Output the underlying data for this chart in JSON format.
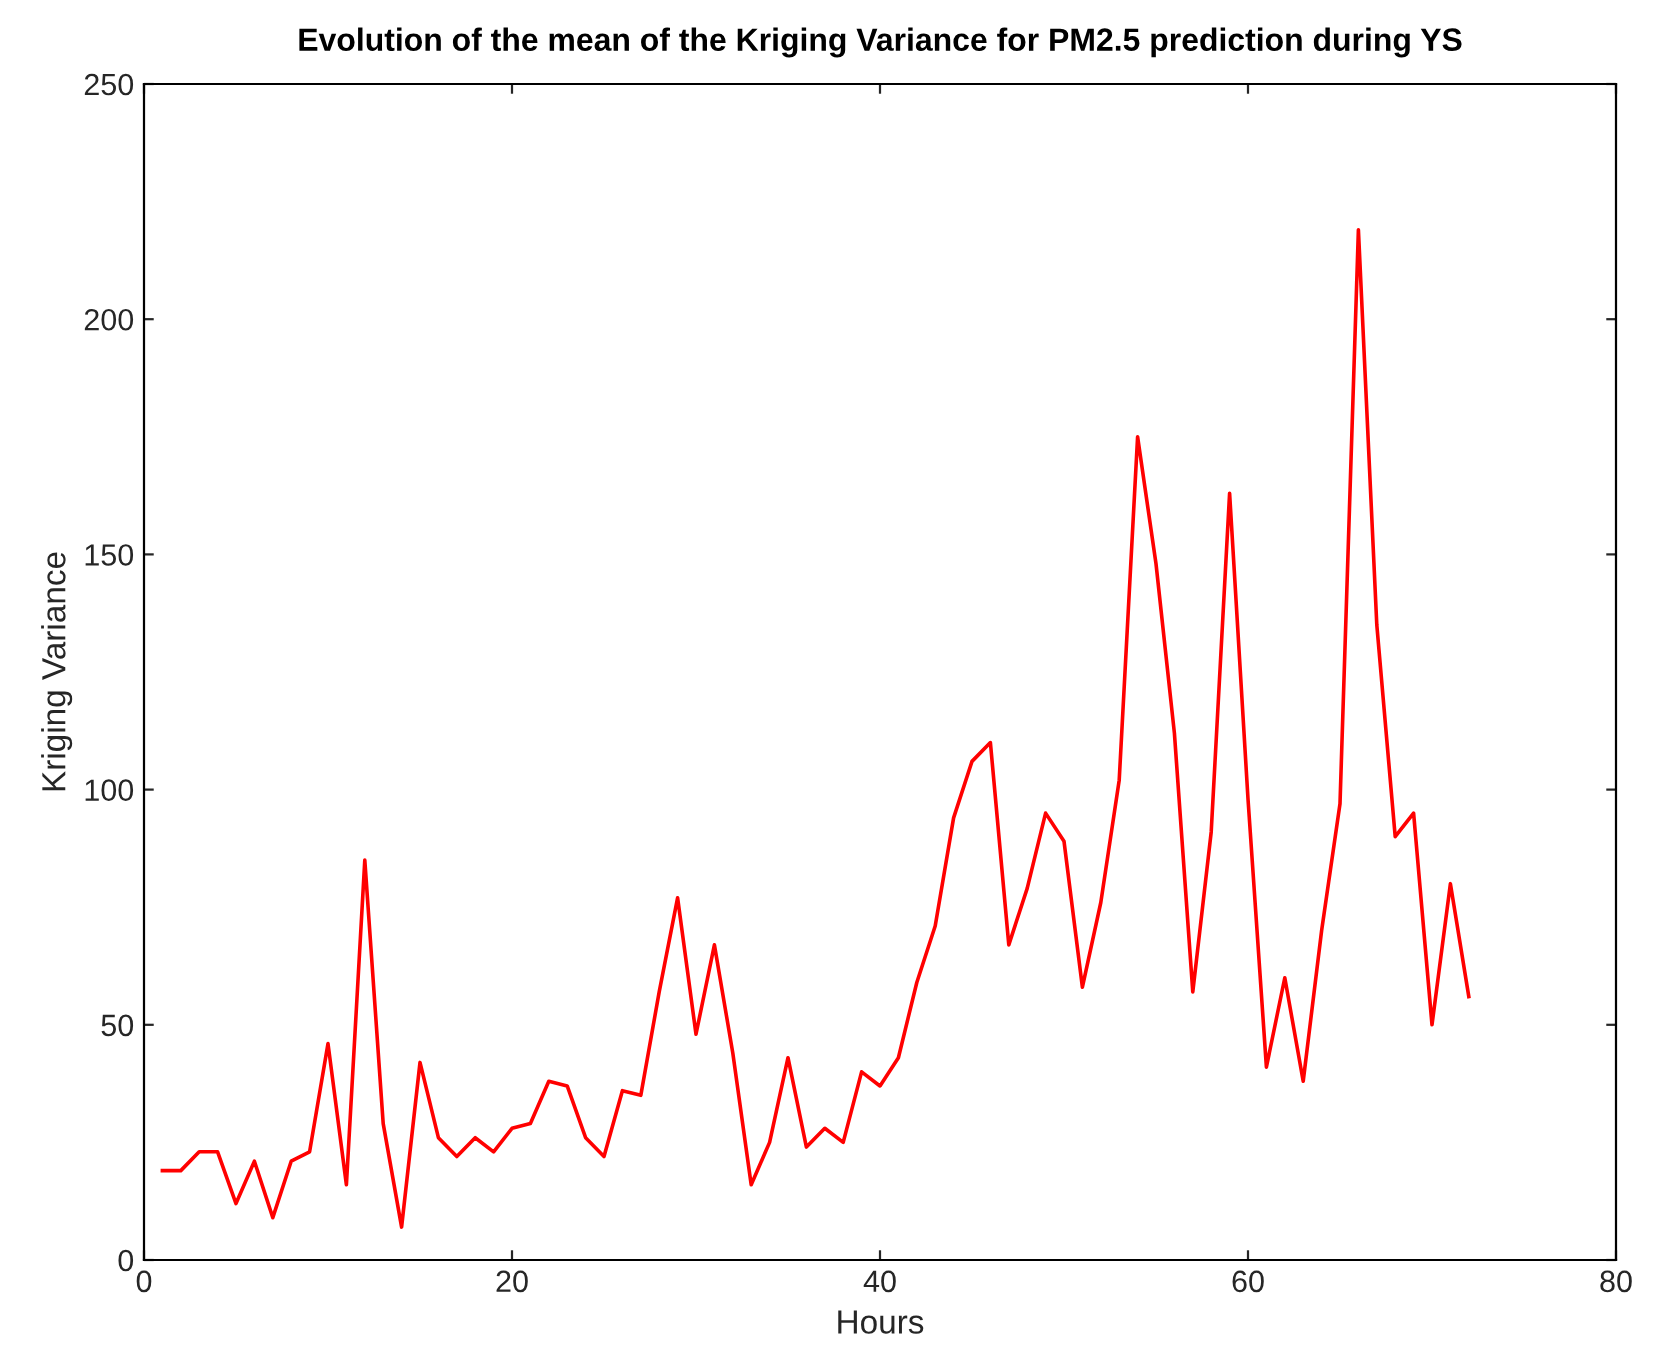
{
  "chart_data": {
    "type": "line",
    "title": "Evolution of the mean of the Kriging Variance for PM2.5 prediction during YS",
    "xlabel": "Hours",
    "ylabel": "Kriging Variance",
    "x": [
      1,
      2,
      3,
      4,
      5,
      6,
      7,
      8,
      9,
      10,
      11,
      12,
      13,
      14,
      15,
      16,
      17,
      18,
      19,
      20,
      21,
      22,
      23,
      24,
      25,
      26,
      27,
      28,
      29,
      30,
      31,
      32,
      33,
      34,
      35,
      36,
      37,
      38,
      39,
      40,
      41,
      42,
      43,
      44,
      45,
      46,
      47,
      48,
      49,
      50,
      51,
      52,
      53,
      54,
      55,
      56,
      57,
      58,
      59,
      60,
      61,
      62,
      63,
      64,
      65,
      66,
      67,
      68,
      69,
      70,
      71,
      72
    ],
    "series": [
      {
        "color": "#ff0000",
        "values": [
          19,
          19,
          23,
          23,
          12,
          21,
          9,
          21,
          23,
          46,
          16,
          85,
          29,
          7,
          42,
          26,
          22,
          26,
          23,
          28,
          29,
          38,
          37,
          26,
          22,
          36,
          35,
          57,
          77,
          48,
          67,
          44,
          16,
          25,
          43,
          24,
          28,
          25,
          40,
          37,
          43,
          59,
          71,
          94,
          106,
          110,
          67,
          79,
          95,
          89,
          58,
          76,
          102,
          175,
          148,
          112,
          57,
          91,
          163,
          98,
          41,
          60,
          38,
          70,
          97,
          219,
          135,
          90,
          95,
          50,
          80,
          56
        ]
      }
    ],
    "xlim": [
      0,
      80
    ],
    "xticks": [
      0,
      20,
      40,
      60,
      80
    ],
    "ylim": [
      0,
      250
    ],
    "yticks": [
      0,
      50,
      100,
      150,
      200,
      250
    ],
    "marker": "none",
    "line_style": "solid"
  }
}
